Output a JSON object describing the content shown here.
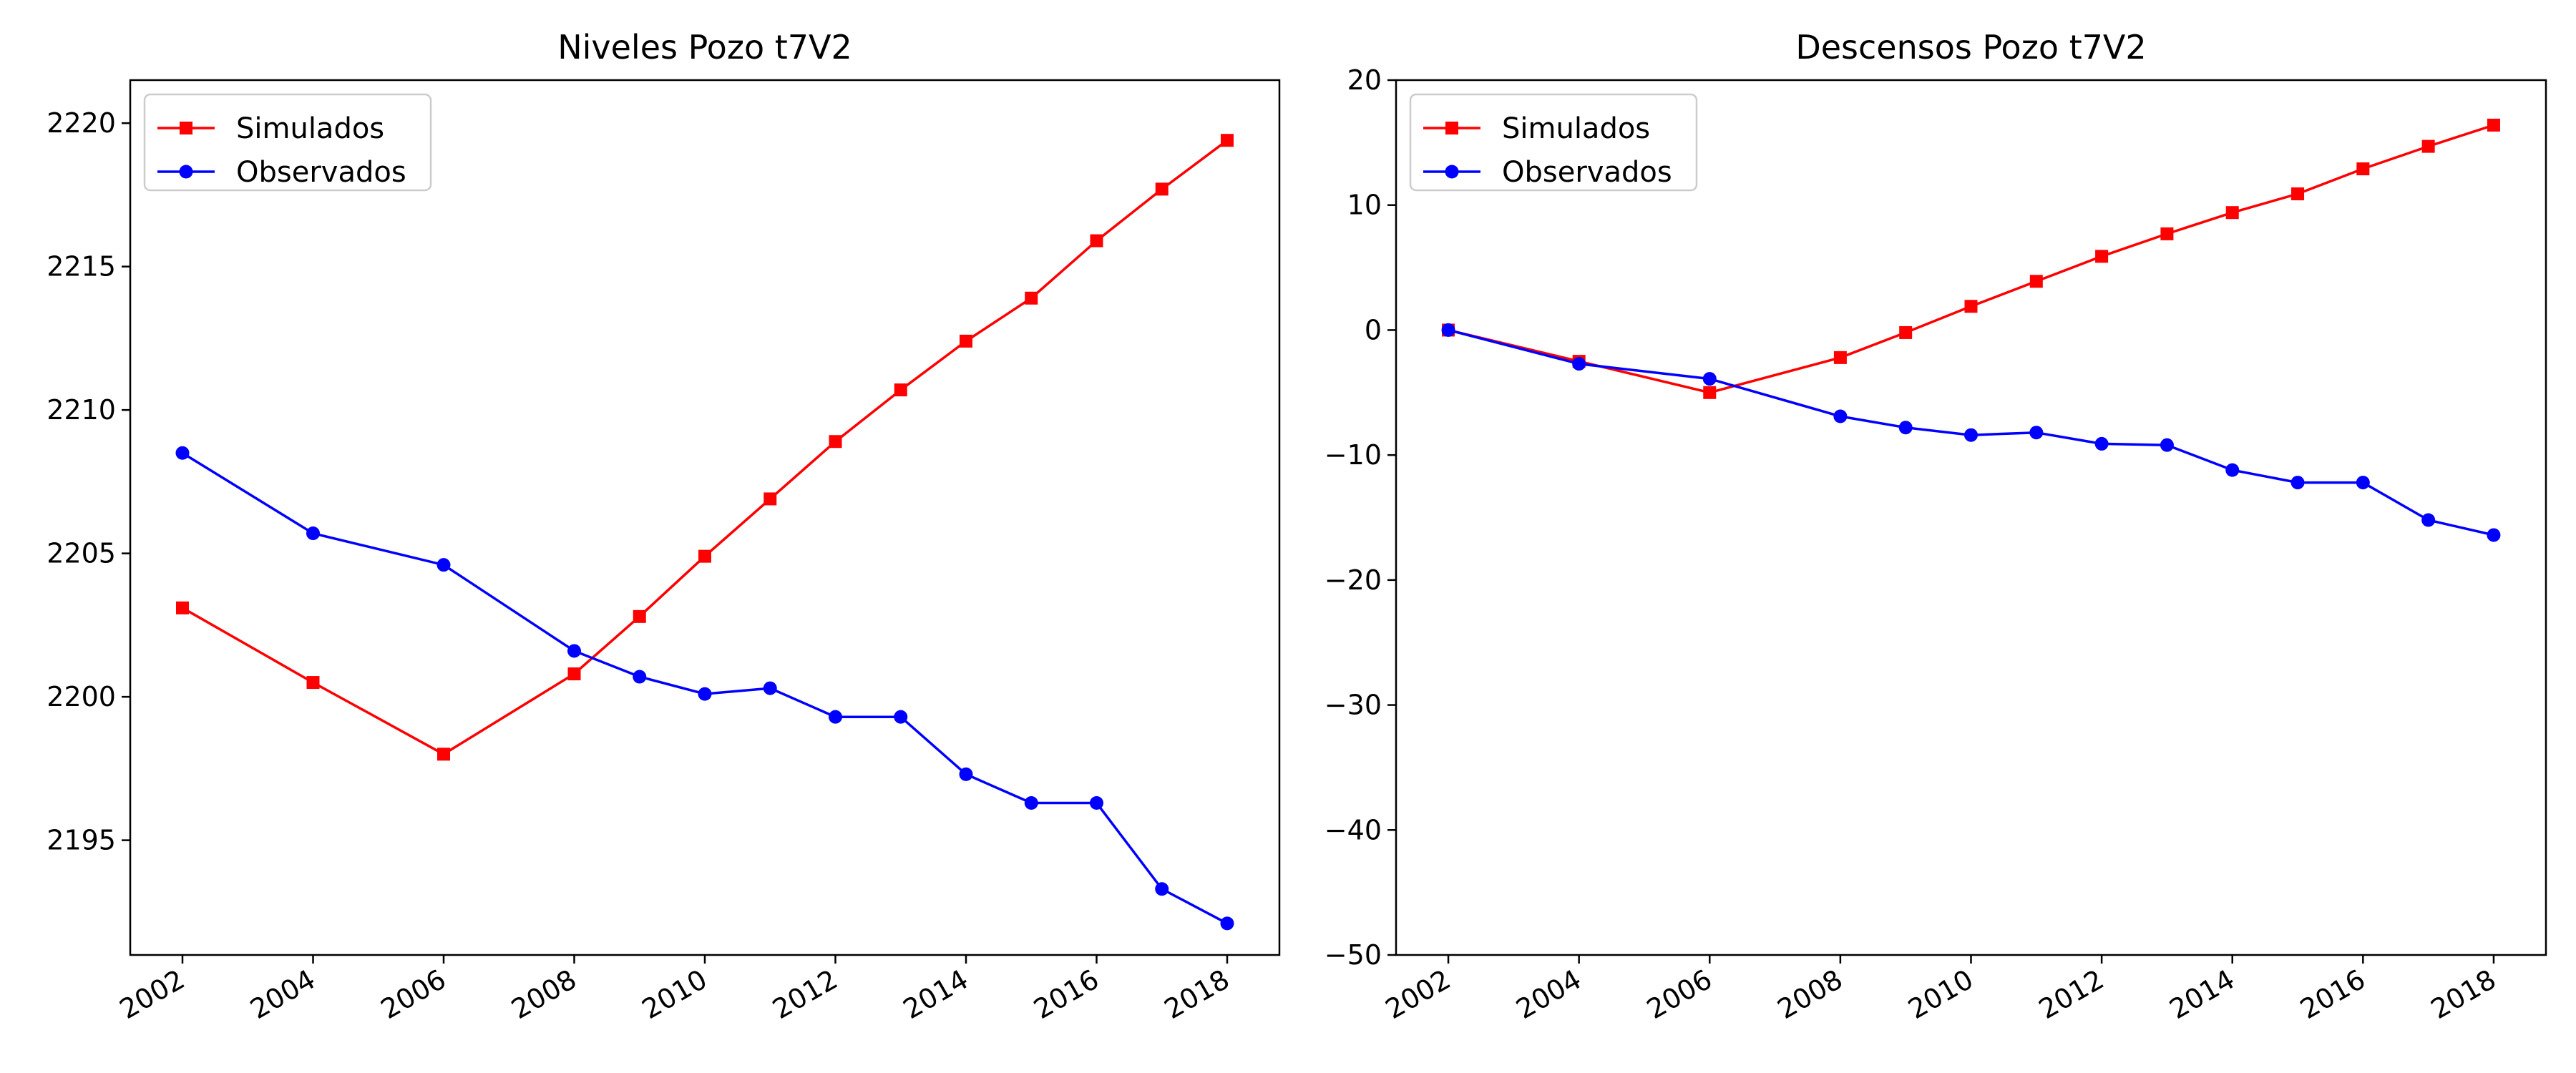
{
  "chart_data": [
    {
      "type": "line",
      "title": "Niveles Pozo t7V2",
      "xlabel": "",
      "ylabel": "",
      "xlim": [
        2001.2,
        2018.8
      ],
      "ylim": [
        2191,
        2221.5
      ],
      "xticks": [
        2002,
        2004,
        2006,
        2008,
        2010,
        2012,
        2014,
        2016,
        2018
      ],
      "yticks": [
        2195,
        2200,
        2205,
        2210,
        2215,
        2220
      ],
      "legend": "top-left",
      "grid": false,
      "series": [
        {
          "name": "Simulados",
          "color": "#ff0000",
          "marker": "square",
          "x": [
            2002,
            2004,
            2006,
            2008,
            2009,
            2010,
            2011,
            2012,
            2013,
            2014,
            2015,
            2016,
            2017,
            2018
          ],
          "y": [
            2203.1,
            2200.5,
            2198.0,
            2200.8,
            2202.8,
            2204.9,
            2206.9,
            2208.9,
            2210.7,
            2212.4,
            2213.9,
            2215.9,
            2217.7,
            2219.4
          ]
        },
        {
          "name": "Observados",
          "color": "#0000ff",
          "marker": "circle",
          "x": [
            2002,
            2004,
            2006,
            2008,
            2009,
            2010,
            2011,
            2012,
            2013,
            2014,
            2015,
            2016,
            2017,
            2018
          ],
          "y": [
            2208.5,
            2205.7,
            2204.6,
            2201.6,
            2200.7,
            2200.1,
            2200.3,
            2199.3,
            2199.3,
            2197.3,
            2196.3,
            2196.3,
            2193.3,
            2192.1
          ]
        }
      ]
    },
    {
      "type": "line",
      "title": "Descensos Pozo t7V2",
      "xlabel": "",
      "ylabel": "",
      "xlim": [
        2001.2,
        2018.8
      ],
      "ylim": [
        -50,
        20
      ],
      "xticks": [
        2002,
        2004,
        2006,
        2008,
        2010,
        2012,
        2014,
        2016,
        2018
      ],
      "yticks": [
        -50,
        -40,
        -30,
        -20,
        -10,
        0,
        10,
        20
      ],
      "legend": "top-left",
      "grid": false,
      "series": [
        {
          "name": "Simulados",
          "color": "#ff0000",
          "marker": "square",
          "x": [
            2002,
            2004,
            2006,
            2008,
            2009,
            2010,
            2011,
            2012,
            2013,
            2014,
            2015,
            2016,
            2017,
            2018
          ],
          "y": [
            0,
            -2.5,
            -5.0,
            -2.2,
            -0.2,
            1.9,
            3.9,
            5.9,
            7.7,
            9.4,
            10.9,
            12.9,
            14.7,
            16.4
          ]
        },
        {
          "name": "Observados",
          "color": "#0000ff",
          "marker": "circle",
          "x": [
            2002,
            2004,
            2006,
            2008,
            2009,
            2010,
            2011,
            2012,
            2013,
            2014,
            2015,
            2016,
            2017,
            2018
          ],
          "y": [
            0,
            -2.7,
            -3.9,
            -6.9,
            -7.8,
            -8.4,
            -8.2,
            -9.1,
            -9.2,
            -11.2,
            -12.2,
            -12.2,
            -15.2,
            -16.4
          ]
        }
      ]
    }
  ]
}
